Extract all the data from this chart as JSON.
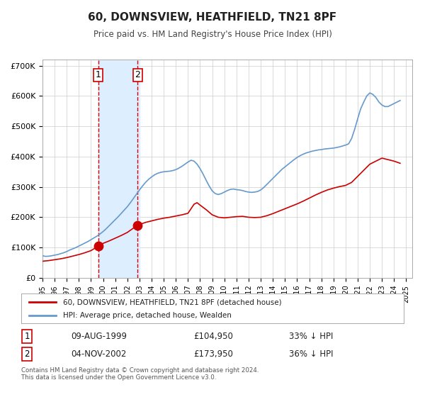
{
  "title": "60, DOWNSVIEW, HEATHFIELD, TN21 8PF",
  "subtitle": "Price paid vs. HM Land Registry's House Price Index (HPI)",
  "xlim": [
    1995.0,
    2025.5
  ],
  "ylim": [
    0,
    720000
  ],
  "yticks": [
    0,
    100000,
    200000,
    300000,
    400000,
    500000,
    600000,
    700000
  ],
  "ytick_labels": [
    "£0",
    "£100K",
    "£200K",
    "£300K",
    "£400K",
    "£500K",
    "£600K",
    "£700K"
  ],
  "xtick_years": [
    1995,
    1996,
    1997,
    1998,
    1999,
    2000,
    2001,
    2002,
    2003,
    2004,
    2005,
    2006,
    2007,
    2008,
    2009,
    2010,
    2011,
    2012,
    2013,
    2014,
    2015,
    2016,
    2017,
    2018,
    2019,
    2020,
    2021,
    2022,
    2023,
    2024,
    2025
  ],
  "background_color": "#ffffff",
  "grid_color": "#cccccc",
  "highlight_region_x1": 1999.6,
  "highlight_region_x2": 2003.0,
  "highlight_region_color": "#ddeeff",
  "sale1_x": 1999.608,
  "sale1_y": 104950,
  "sale2_x": 2002.84,
  "sale2_y": 173950,
  "sale_dot_color": "#cc0000",
  "sale_dot_size": 80,
  "vline1_x": 1999.608,
  "vline2_x": 2002.84,
  "vline_color": "#dd0000",
  "hpi_line_color": "#6699cc",
  "price_line_color": "#cc0000",
  "legend_label_price": "60, DOWNSVIEW, HEATHFIELD, TN21 8PF (detached house)",
  "legend_label_hpi": "HPI: Average price, detached house, Wealden",
  "annotation1_label": "1",
  "annotation2_label": "2",
  "table_row1": [
    "1",
    "09-AUG-1999",
    "£104,950",
    "33% ↓ HPI"
  ],
  "table_row2": [
    "2",
    "04-NOV-2002",
    "£173,950",
    "36% ↓ HPI"
  ],
  "footnote": "Contains HM Land Registry data © Crown copyright and database right 2024.\nThis data is licensed under the Open Government Licence v3.0.",
  "hpi_data_x": [
    1995.0,
    1995.25,
    1995.5,
    1995.75,
    1996.0,
    1996.25,
    1996.5,
    1996.75,
    1997.0,
    1997.25,
    1997.5,
    1997.75,
    1998.0,
    1998.25,
    1998.5,
    1998.75,
    1999.0,
    1999.25,
    1999.5,
    1999.75,
    2000.0,
    2000.25,
    2000.5,
    2000.75,
    2001.0,
    2001.25,
    2001.5,
    2001.75,
    2002.0,
    2002.25,
    2002.5,
    2002.75,
    2003.0,
    2003.25,
    2003.5,
    2003.75,
    2004.0,
    2004.25,
    2004.5,
    2004.75,
    2005.0,
    2005.25,
    2005.5,
    2005.75,
    2006.0,
    2006.25,
    2006.5,
    2006.75,
    2007.0,
    2007.25,
    2007.5,
    2007.75,
    2008.0,
    2008.25,
    2008.5,
    2008.75,
    2009.0,
    2009.25,
    2009.5,
    2009.75,
    2010.0,
    2010.25,
    2010.5,
    2010.75,
    2011.0,
    2011.25,
    2011.5,
    2011.75,
    2012.0,
    2012.25,
    2012.5,
    2012.75,
    2013.0,
    2013.25,
    2013.5,
    2013.75,
    2014.0,
    2014.25,
    2014.5,
    2014.75,
    2015.0,
    2015.25,
    2015.5,
    2015.75,
    2016.0,
    2016.25,
    2016.5,
    2016.75,
    2017.0,
    2017.25,
    2017.5,
    2017.75,
    2018.0,
    2018.25,
    2018.5,
    2018.75,
    2019.0,
    2019.25,
    2019.5,
    2019.75,
    2020.0,
    2020.25,
    2020.5,
    2020.75,
    2021.0,
    2021.25,
    2021.5,
    2021.75,
    2022.0,
    2022.25,
    2022.5,
    2022.75,
    2023.0,
    2023.25,
    2023.5,
    2023.75,
    2024.0,
    2024.25,
    2024.5
  ],
  "hpi_data_y": [
    73000,
    71000,
    71500,
    73000,
    75000,
    77000,
    80000,
    83000,
    87000,
    92000,
    96000,
    100000,
    105000,
    110000,
    115000,
    120000,
    126000,
    132000,
    138000,
    145000,
    153000,
    162000,
    172000,
    182000,
    192000,
    202000,
    213000,
    224000,
    235000,
    248000,
    262000,
    276000,
    290000,
    303000,
    315000,
    325000,
    333000,
    340000,
    345000,
    348000,
    350000,
    351000,
    352000,
    354000,
    357000,
    362000,
    368000,
    375000,
    382000,
    388000,
    385000,
    375000,
    360000,
    342000,
    322000,
    303000,
    287000,
    278000,
    275000,
    278000,
    283000,
    288000,
    292000,
    293000,
    291000,
    290000,
    288000,
    285000,
    283000,
    282000,
    283000,
    285000,
    290000,
    298000,
    308000,
    318000,
    328000,
    338000,
    348000,
    358000,
    366000,
    374000,
    382000,
    390000,
    397000,
    403000,
    408000,
    412000,
    415000,
    418000,
    420000,
    422000,
    423000,
    425000,
    426000,
    427000,
    428000,
    430000,
    432000,
    435000,
    438000,
    442000,
    460000,
    490000,
    525000,
    558000,
    580000,
    600000,
    610000,
    605000,
    595000,
    580000,
    570000,
    565000,
    565000,
    570000,
    575000,
    580000,
    585000
  ],
  "price_data_x": [
    1995.0,
    1995.5,
    1996.0,
    1996.5,
    1997.0,
    1997.5,
    1998.0,
    1998.5,
    1999.0,
    1999.608,
    1999.75,
    2000.0,
    2000.5,
    2001.0,
    2001.5,
    2002.0,
    2002.84,
    2003.0,
    2003.5,
    2004.0,
    2004.5,
    2005.0,
    2005.5,
    2006.0,
    2006.5,
    2007.0,
    2007.5,
    2007.75,
    2008.0,
    2008.5,
    2009.0,
    2009.5,
    2010.0,
    2010.5,
    2011.0,
    2011.5,
    2012.0,
    2012.5,
    2013.0,
    2013.5,
    2014.0,
    2014.5,
    2015.0,
    2015.5,
    2016.0,
    2016.5,
    2017.0,
    2017.5,
    2018.0,
    2018.5,
    2019.0,
    2019.5,
    2020.0,
    2020.5,
    2021.0,
    2021.5,
    2022.0,
    2022.5,
    2023.0,
    2023.5,
    2024.0,
    2024.5
  ],
  "price_data_y": [
    55000,
    57000,
    60000,
    63000,
    67000,
    72000,
    77000,
    83000,
    90000,
    104950,
    108000,
    114000,
    122000,
    131000,
    140000,
    150000,
    173950,
    176000,
    183000,
    188000,
    193000,
    197000,
    200000,
    204000,
    208000,
    213000,
    243000,
    248000,
    240000,
    225000,
    208000,
    200000,
    198000,
    200000,
    202000,
    203000,
    200000,
    199000,
    200000,
    205000,
    212000,
    220000,
    228000,
    236000,
    244000,
    253000,
    263000,
    273000,
    282000,
    290000,
    296000,
    301000,
    305000,
    315000,
    335000,
    355000,
    375000,
    385000,
    395000,
    390000,
    385000,
    378000
  ]
}
